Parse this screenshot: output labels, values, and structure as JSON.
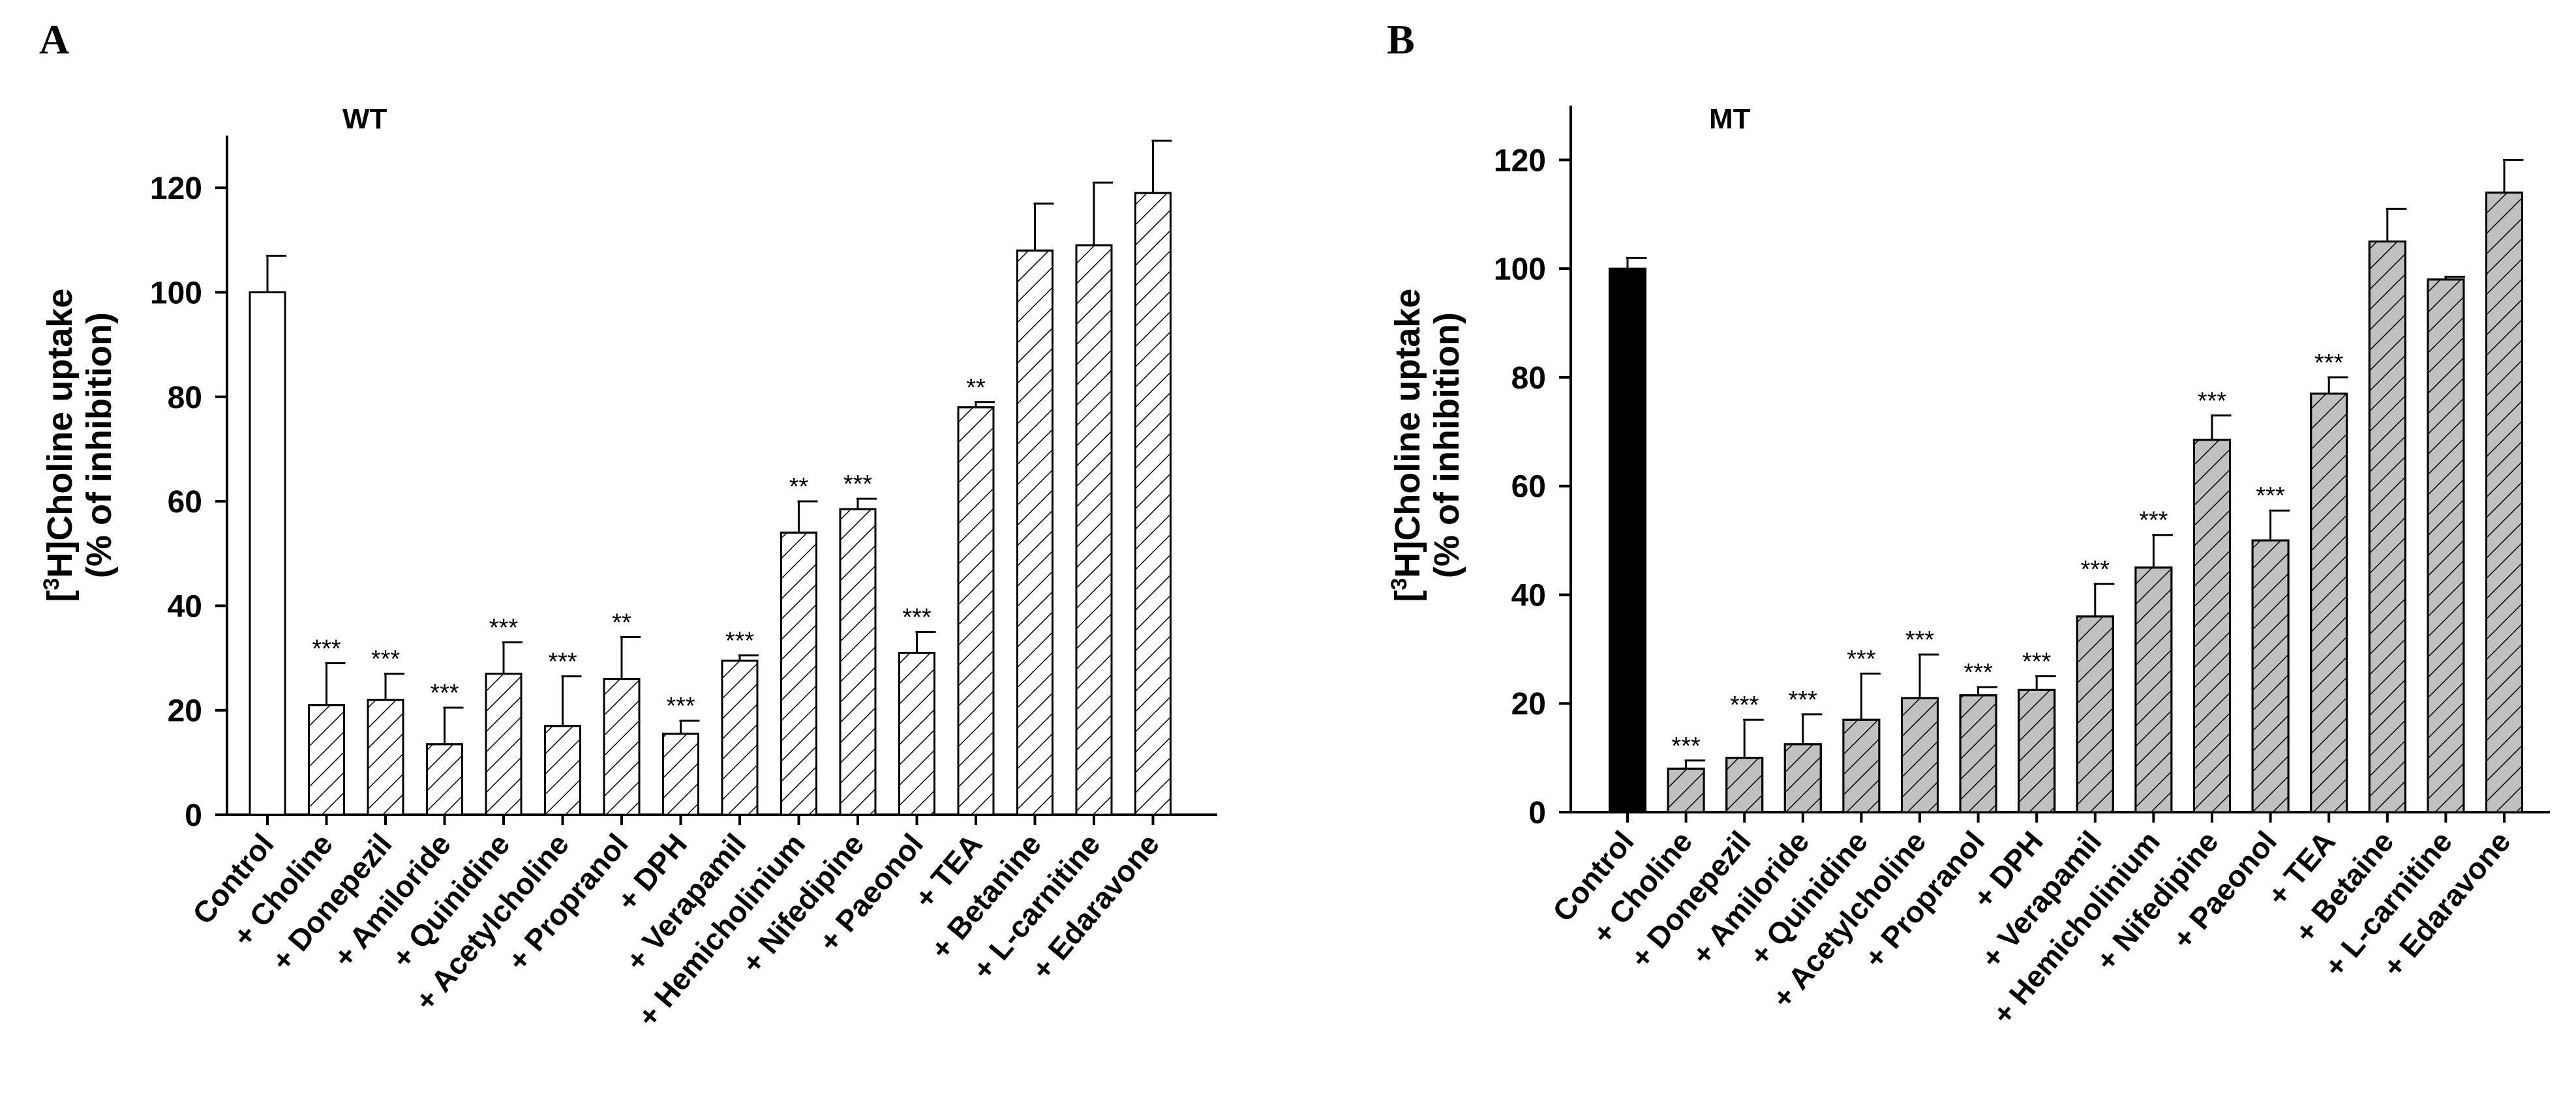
{
  "chart_data": [
    {
      "type": "bar",
      "panel": "A",
      "group_label": "WT",
      "ylabel_line1": "[3H]Choline uptake",
      "ylabel_line2": "(% of inhibition)",
      "ylim": [
        0,
        130
      ],
      "yticks": [
        0,
        20,
        40,
        60,
        80,
        100,
        120
      ],
      "categories": [
        "Control",
        "+ Choline",
        "+ Donepezil",
        "+ Amiloride",
        "+ Quinidine",
        "+ Acetylcholine",
        "+ Propranol",
        "+ DPH",
        "+ Verapamil",
        "+ Hemicholinium",
        "+ Nifedipine",
        "+ Paeonol",
        "+ TEA",
        "+ Betanine",
        "+ L-carnitine",
        "+ Edaravone"
      ],
      "values": [
        100,
        21,
        22,
        13.5,
        27,
        17,
        26,
        15.5,
        29.5,
        54,
        58.5,
        31,
        78,
        108,
        109,
        119
      ],
      "errors": [
        7,
        8,
        5,
        7,
        6,
        9.5,
        8,
        2.5,
        1,
        6,
        2,
        4,
        1,
        9,
        12,
        10
      ],
      "significance": [
        "",
        "***",
        "***",
        "***",
        "***",
        "***",
        "**",
        "***",
        "***",
        "**",
        "***",
        "***",
        "**",
        "",
        "",
        ""
      ],
      "fill": "#ffffff",
      "control_fill": "#ffffff",
      "hatch": true
    },
    {
      "type": "bar",
      "panel": "B",
      "group_label": "MT",
      "ylabel_line1": "[3H]Choline uptake",
      "ylabel_line2": "(% of inhibition)",
      "ylim": [
        0,
        130
      ],
      "yticks": [
        0,
        20,
        40,
        60,
        80,
        100,
        120
      ],
      "categories": [
        "Control",
        "+ Choline",
        "+ Donepezil",
        "+ Amiloride",
        "+ Quinidine",
        "+ Acetylcholine",
        "+ Propranol",
        "+ DPH",
        "+ Verapamil",
        "+ Hemicholinium",
        "+ Nifedipine",
        "+ Paeonol",
        "+ TEA",
        "+ Betaine",
        "+ L-carnitine",
        "+ Edaravone"
      ],
      "values": [
        100,
        8,
        10,
        12.5,
        17,
        21,
        21.5,
        22.5,
        36,
        45,
        68.5,
        50,
        77,
        105,
        98,
        114
      ],
      "errors": [
        2,
        1.5,
        7,
        5.5,
        8.5,
        8,
        1.5,
        2.5,
        6,
        6,
        4.5,
        5.5,
        3,
        6,
        0.5,
        6
      ],
      "significance": [
        "",
        "***",
        "***",
        "***",
        "***",
        "***",
        "***",
        "***",
        "***",
        "***",
        "***",
        "***",
        "***",
        "",
        "",
        ""
      ],
      "fill": "#c0c0c0",
      "control_fill": "#000000",
      "hatch": true
    }
  ]
}
